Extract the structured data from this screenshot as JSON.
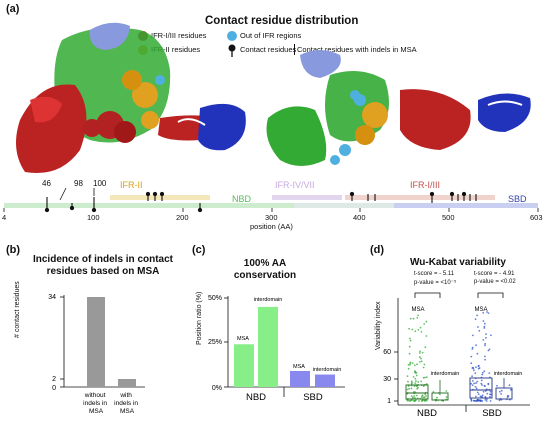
{
  "panel_a": {
    "label": "(a)",
    "title": "Contact residue distribution",
    "legend": {
      "ifr13": "IFR-I/III residues",
      "out_ifr": "Out of IFR regions",
      "ifr2": "IFR-II residues",
      "contact": "Contact residues",
      "indels": "Contact residues with indels in MSA"
    },
    "colors": {
      "ifr13": "#b22222",
      "ifr2": "#e0a020",
      "out_ifr": "#4fb0e0",
      "nbd": "#22aa22",
      "sbd": "#2233bb",
      "ifr4": "#8888cc"
    },
    "markers": [
      "46",
      "98",
      "100"
    ],
    "regions": [
      {
        "name": "IFR-II",
        "start": 110,
        "end": 215,
        "color": "#f3e6b8",
        "text_color": "#d4a017"
      },
      {
        "name": "NBD",
        "start": 4,
        "end": 385,
        "color": "#cdeccd",
        "text_color": "#55bb55"
      },
      {
        "name": "IFR-IV/VII",
        "start": 300,
        "end": 360,
        "color": "#e2d6ee",
        "text_color": "#c7a7e0"
      },
      {
        "name": "IFR-I/III",
        "start": 390,
        "end": 550,
        "color": "#efd3cc",
        "text_color": "#c0504d"
      },
      {
        "name": "SBD",
        "start": 385,
        "end": 603,
        "color": "#c9cff0",
        "text_color": "#3344aa"
      }
    ],
    "axis": {
      "ticks": [
        "4",
        "100",
        "200",
        "300",
        "400",
        "500",
        "603"
      ],
      "label": "position (AA)"
    }
  },
  "panel_b": {
    "label": "(b)",
    "title_line1": "Incidence of indels in contact",
    "title_line2": "residues based on MSA",
    "chart_data": {
      "type": "bar",
      "categories": [
        "without indels in MSA",
        "with indels in MSA"
      ],
      "category_lines": [
        [
          "without",
          "indels in",
          "MSA"
        ],
        [
          "with",
          "indels in",
          "MSA"
        ]
      ],
      "values": [
        34,
        3
      ],
      "ylabel": "# contact residues",
      "yticks": [
        "34",
        "2",
        "0"
      ],
      "color": "#999999"
    }
  },
  "panel_c": {
    "label": "(c)",
    "title_line1": "100% AA",
    "title_line2": "conservation",
    "chart_data": {
      "type": "bar",
      "groups": [
        "NBD",
        "SBD"
      ],
      "bar_labels": [
        "MSA",
        "interdomain",
        "MSA",
        "interdomain"
      ],
      "values": [
        24,
        45,
        9,
        7
      ],
      "ylim": [
        0,
        50
      ],
      "yticks": [
        "50%",
        "25%",
        "0%"
      ],
      "ylabel": "Position ratio (%)",
      "colors": [
        "#88ee88",
        "#88ee88",
        "#8888ee",
        "#8888ee"
      ]
    }
  },
  "panel_d": {
    "label": "(d)",
    "title": "Wu-Kabat variability",
    "stats": [
      {
        "t": "t-score = - 5.11",
        "p": "p-value = <10⁻⁵"
      },
      {
        "t": "t-score = - 4.91",
        "p": "p-value = <0.02"
      }
    ],
    "chart_data": {
      "type": "box",
      "groups": [
        "NBD",
        "SBD"
      ],
      "series_labels": [
        "MSA",
        "interdomain",
        "MSA",
        "interdomain"
      ],
      "yticks": [
        "60",
        "30",
        "1"
      ],
      "ylabel": "Variability index",
      "colors": [
        "#33aa33",
        "#33aa33",
        "#3355cc",
        "#3355cc"
      ]
    }
  }
}
